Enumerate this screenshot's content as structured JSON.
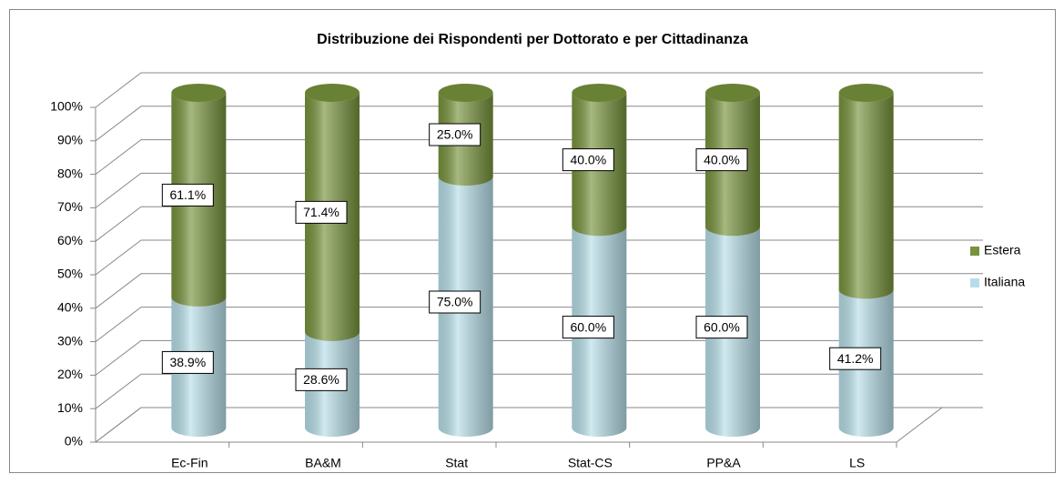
{
  "chart_data": {
    "type": "stacked-cylinder",
    "title": "Distribuzione dei Rispondenti per Dottorato e per Cittadinanza",
    "categories": [
      "Ec-Fin",
      "BA&M",
      "Stat",
      "Stat-CS",
      "PP&A",
      "LS"
    ],
    "series": [
      {
        "name": "Italiana",
        "color": "#b7dee8",
        "values": [
          38.9,
          28.6,
          75.0,
          60.0,
          60.0,
          41.2
        ],
        "value_labels": [
          "38.9%",
          "28.6%",
          "75.0%",
          "60.0%",
          "60.0%",
          "41.2%"
        ]
      },
      {
        "name": "Estera",
        "color": "#77933c",
        "values": [
          61.1,
          71.4,
          25.0,
          40.0,
          40.0,
          58.8
        ],
        "value_labels": [
          "61.1%",
          "71.4%",
          "25.0%",
          "40.0%",
          "40.0%",
          null
        ]
      }
    ],
    "ylim": [
      0,
      100
    ],
    "yticks": [
      {
        "value": 0,
        "label": "0%"
      },
      {
        "value": 10,
        "label": "10%"
      },
      {
        "value": 20,
        "label": "20%"
      },
      {
        "value": 30,
        "label": "30%"
      },
      {
        "value": 40,
        "label": "40%"
      },
      {
        "value": 50,
        "label": "50%"
      },
      {
        "value": 60,
        "label": "60%"
      },
      {
        "value": 70,
        "label": "70%"
      },
      {
        "value": 80,
        "label": "80%"
      },
      {
        "value": 90,
        "label": "90%"
      },
      {
        "value": 100,
        "label": "100%"
      }
    ],
    "grid": true,
    "legend": "right"
  }
}
